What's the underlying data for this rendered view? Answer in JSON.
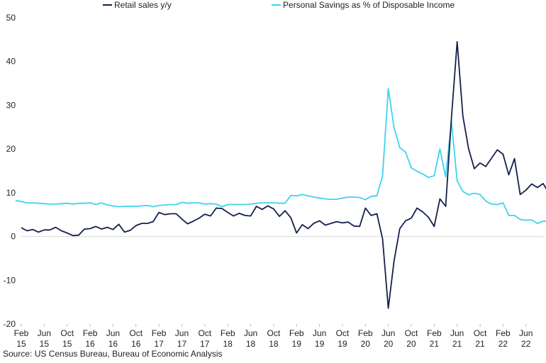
{
  "chart_data": {
    "type": "line",
    "source": "Source: US Census Bureau, Bureau of Economic Analysis",
    "ylim": [
      -20,
      50
    ],
    "yticks": [
      -20,
      -10,
      0,
      10,
      20,
      30,
      40,
      50
    ],
    "legend_position": "top",
    "grid": false,
    "x_start": "2015-02",
    "x_end": "2022-09",
    "xticks": [
      {
        "month": "Feb",
        "year": "15",
        "date": "2015-02"
      },
      {
        "month": "Jun",
        "year": "15",
        "date": "2015-06"
      },
      {
        "month": "Oct",
        "year": "15",
        "date": "2015-10"
      },
      {
        "month": "Feb",
        "year": "16",
        "date": "2016-02"
      },
      {
        "month": "Jun",
        "year": "16",
        "date": "2016-06"
      },
      {
        "month": "Oct",
        "year": "16",
        "date": "2016-10"
      },
      {
        "month": "Feb",
        "year": "17",
        "date": "2017-02"
      },
      {
        "month": "Jun",
        "year": "17",
        "date": "2017-06"
      },
      {
        "month": "Oct",
        "year": "17",
        "date": "2017-10"
      },
      {
        "month": "Feb",
        "year": "18",
        "date": "2018-02"
      },
      {
        "month": "Jun",
        "year": "18",
        "date": "2018-06"
      },
      {
        "month": "Oct",
        "year": "18",
        "date": "2018-10"
      },
      {
        "month": "Feb",
        "year": "19",
        "date": "2019-02"
      },
      {
        "month": "Jun",
        "year": "19",
        "date": "2019-06"
      },
      {
        "month": "Oct",
        "year": "19",
        "date": "2019-10"
      },
      {
        "month": "Feb",
        "year": "20",
        "date": "2020-02"
      },
      {
        "month": "Jun",
        "year": "20",
        "date": "2020-06"
      },
      {
        "month": "Oct",
        "year": "20",
        "date": "2020-10"
      },
      {
        "month": "Feb",
        "year": "21",
        "date": "2021-02"
      },
      {
        "month": "Jun",
        "year": "21",
        "date": "2021-06"
      },
      {
        "month": "Oct",
        "year": "21",
        "date": "2021-10"
      },
      {
        "month": "Feb",
        "year": "22",
        "date": "2022-02"
      },
      {
        "month": "Jun",
        "year": "22",
        "date": "2022-06"
      }
    ],
    "series": [
      {
        "name": "Retail sales y/y",
        "color": "#14204a",
        "start": "2015-02",
        "values": [
          2.0,
          1.3,
          1.6,
          1.0,
          1.5,
          1.5,
          2.1,
          1.3,
          0.8,
          0.2,
          0.3,
          1.7,
          1.8,
          2.3,
          1.7,
          2.1,
          1.6,
          2.8,
          1.0,
          1.4,
          2.5,
          3.0,
          3.0,
          3.4,
          5.5,
          5.0,
          5.2,
          5.2,
          4.0,
          2.9,
          3.5,
          4.2,
          5.1,
          4.7,
          6.5,
          6.4,
          5.5,
          4.7,
          5.3,
          4.8,
          4.7,
          6.9,
          6.2,
          7.0,
          6.3,
          4.6,
          5.9,
          4.3,
          0.8,
          2.7,
          1.8,
          3.0,
          3.6,
          2.6,
          3.0,
          3.4,
          3.1,
          3.3,
          2.4,
          2.3,
          6.5,
          4.8,
          5.2,
          -0.5,
          -16.4,
          -5.6,
          1.8,
          3.6,
          4.2,
          6.5,
          5.6,
          4.4,
          2.3,
          8.6,
          6.9,
          27.0,
          44.5,
          27.5,
          20.0,
          15.5,
          16.8,
          16.0,
          17.9,
          19.8,
          18.8,
          14.1,
          17.8,
          9.6,
          10.6,
          12.0,
          11.2,
          12.1,
          9.9,
          9.0
        ]
      },
      {
        "name": "Personal Savings as % of Disposable Income",
        "color": "#3fd3ee",
        "start": "2015-01",
        "values": [
          8.2,
          8.0,
          7.7,
          7.7,
          7.6,
          7.5,
          7.4,
          7.4,
          7.5,
          7.6,
          7.4,
          7.6,
          7.6,
          7.7,
          7.3,
          7.7,
          7.2,
          7.0,
          6.8,
          6.9,
          6.9,
          6.9,
          7.0,
          7.1,
          6.8,
          7.1,
          7.2,
          7.3,
          7.3,
          7.8,
          7.6,
          7.7,
          7.7,
          7.4,
          7.5,
          7.4,
          6.8,
          7.3,
          7.3,
          7.3,
          7.3,
          7.4,
          7.6,
          7.7,
          7.7,
          7.7,
          7.6,
          7.6,
          9.4,
          9.3,
          9.6,
          9.3,
          9.0,
          8.8,
          8.6,
          8.5,
          8.5,
          8.8,
          9.0,
          9.0,
          8.9,
          8.4,
          9.2,
          9.3,
          13.9,
          33.8,
          24.9,
          20.3,
          19.3,
          15.7,
          14.9,
          14.3,
          13.5,
          13.9,
          20.0,
          13.6,
          26.3,
          12.7,
          10.3,
          9.5,
          9.9,
          9.6,
          8.1,
          7.4,
          7.3,
          7.7,
          4.8,
          4.8,
          3.9,
          3.7,
          3.8,
          3.0,
          3.5,
          3.5
        ]
      }
    ]
  }
}
